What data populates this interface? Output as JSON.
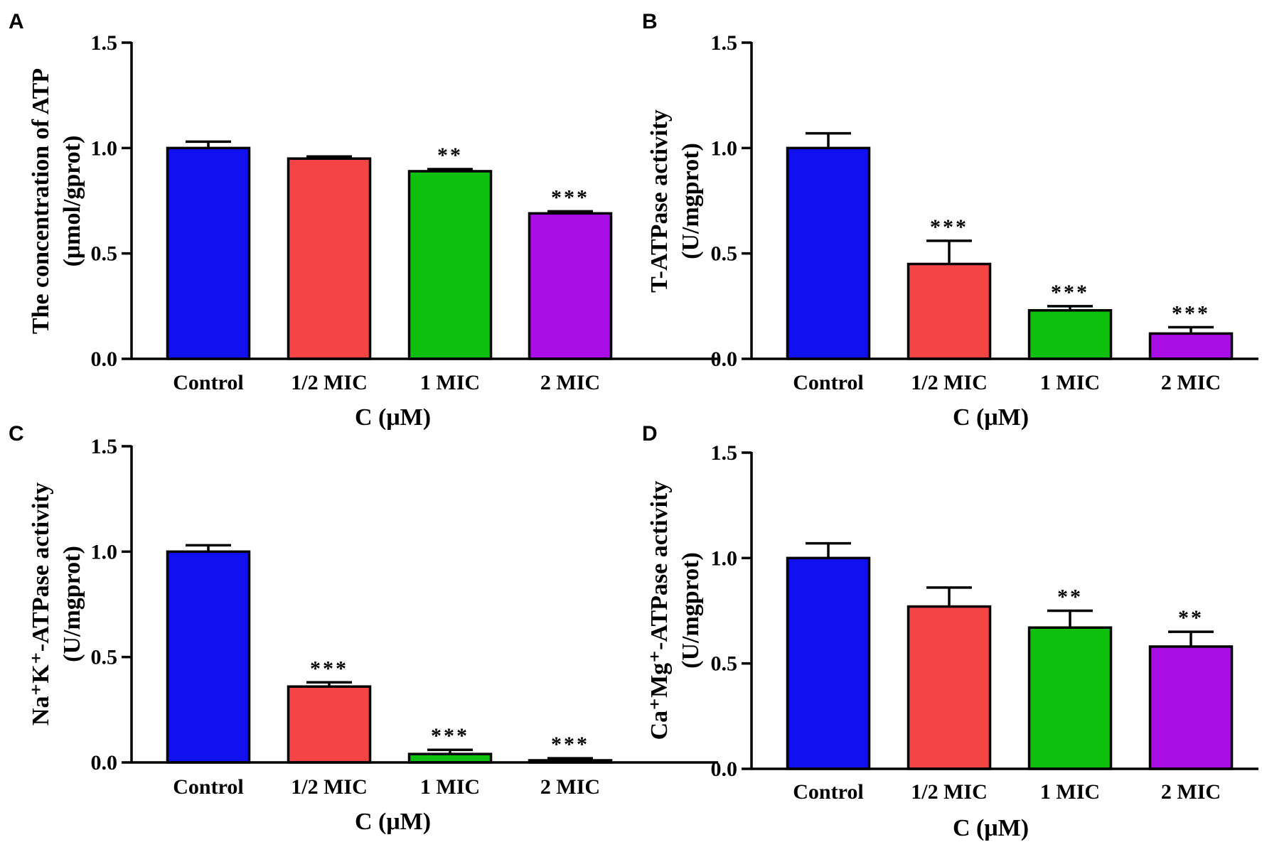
{
  "chart_data": [
    {
      "panel": "A",
      "type": "bar",
      "title": "",
      "categories": [
        "Control",
        "1/2 MIC",
        "1 MIC",
        "2 MIC"
      ],
      "values": [
        1.0,
        0.95,
        0.89,
        0.69
      ],
      "errors": [
        0.03,
        0.01,
        0.01,
        0.01
      ],
      "significance": [
        "",
        "",
        "**",
        "***"
      ],
      "colors": [
        "#1010F0",
        "#F44444",
        "#0DC00D",
        "#A80DE6"
      ],
      "xlabel": "C (μM)",
      "ylabel_lines": [
        "The concentration of ATP",
        "(μmol/gprot)"
      ],
      "ylim": [
        0,
        1.5
      ],
      "yticks": [
        "0.0",
        "0.5",
        "1.0",
        "1.5"
      ]
    },
    {
      "panel": "B",
      "type": "bar",
      "title": "",
      "categories": [
        "Control",
        "1/2 MIC",
        "1 MIC",
        "2 MIC"
      ],
      "values": [
        1.0,
        0.45,
        0.23,
        0.12
      ],
      "errors": [
        0.07,
        0.11,
        0.02,
        0.03
      ],
      "significance": [
        "",
        "***",
        "***",
        "***"
      ],
      "colors": [
        "#1010F0",
        "#F44444",
        "#0DC00D",
        "#A80DE6"
      ],
      "xlabel": "C (μM)",
      "ylabel_lines": [
        "T-ATPase activity",
        "(U/mgprot)"
      ],
      "ylim": [
        0,
        1.5
      ],
      "yticks": [
        "0.0",
        "0.5",
        "1.0",
        "1.5"
      ]
    },
    {
      "panel": "C",
      "type": "bar",
      "title": "",
      "categories": [
        "Control",
        "1/2 MIC",
        "1 MIC",
        "2 MIC"
      ],
      "values": [
        1.0,
        0.36,
        0.04,
        0.01
      ],
      "errors": [
        0.03,
        0.02,
        0.02,
        0.01
      ],
      "significance": [
        "",
        "***",
        "***",
        "***"
      ],
      "colors": [
        "#1010F0",
        "#F44444",
        "#0DC00D",
        "#A80DE6"
      ],
      "xlabel": "C (μM)",
      "ylabel_lines": [
        "Na⁺K⁺-ATPase activity",
        "(U/mgprot)"
      ],
      "ylim": [
        0,
        1.5
      ],
      "yticks": [
        "0.0",
        "0.5",
        "1.0",
        "1.5"
      ]
    },
    {
      "panel": "D",
      "type": "bar",
      "title": "",
      "categories": [
        "Control",
        "1/2 MIC",
        "1 MIC",
        "2 MIC"
      ],
      "values": [
        1.0,
        0.77,
        0.67,
        0.58
      ],
      "errors": [
        0.07,
        0.09,
        0.08,
        0.07
      ],
      "significance": [
        "",
        "",
        "**",
        "**"
      ],
      "colors": [
        "#1010F0",
        "#F44444",
        "#0DC00D",
        "#A80DE6"
      ],
      "xlabel": "C (μM)",
      "ylabel_lines": [
        "Ca⁺Mg⁺-ATPase activity",
        "(U/mgprot)"
      ],
      "ylim": [
        0,
        1.5
      ],
      "yticks": [
        "0.0",
        "0.5",
        "1.0",
        "1.5"
      ]
    }
  ]
}
